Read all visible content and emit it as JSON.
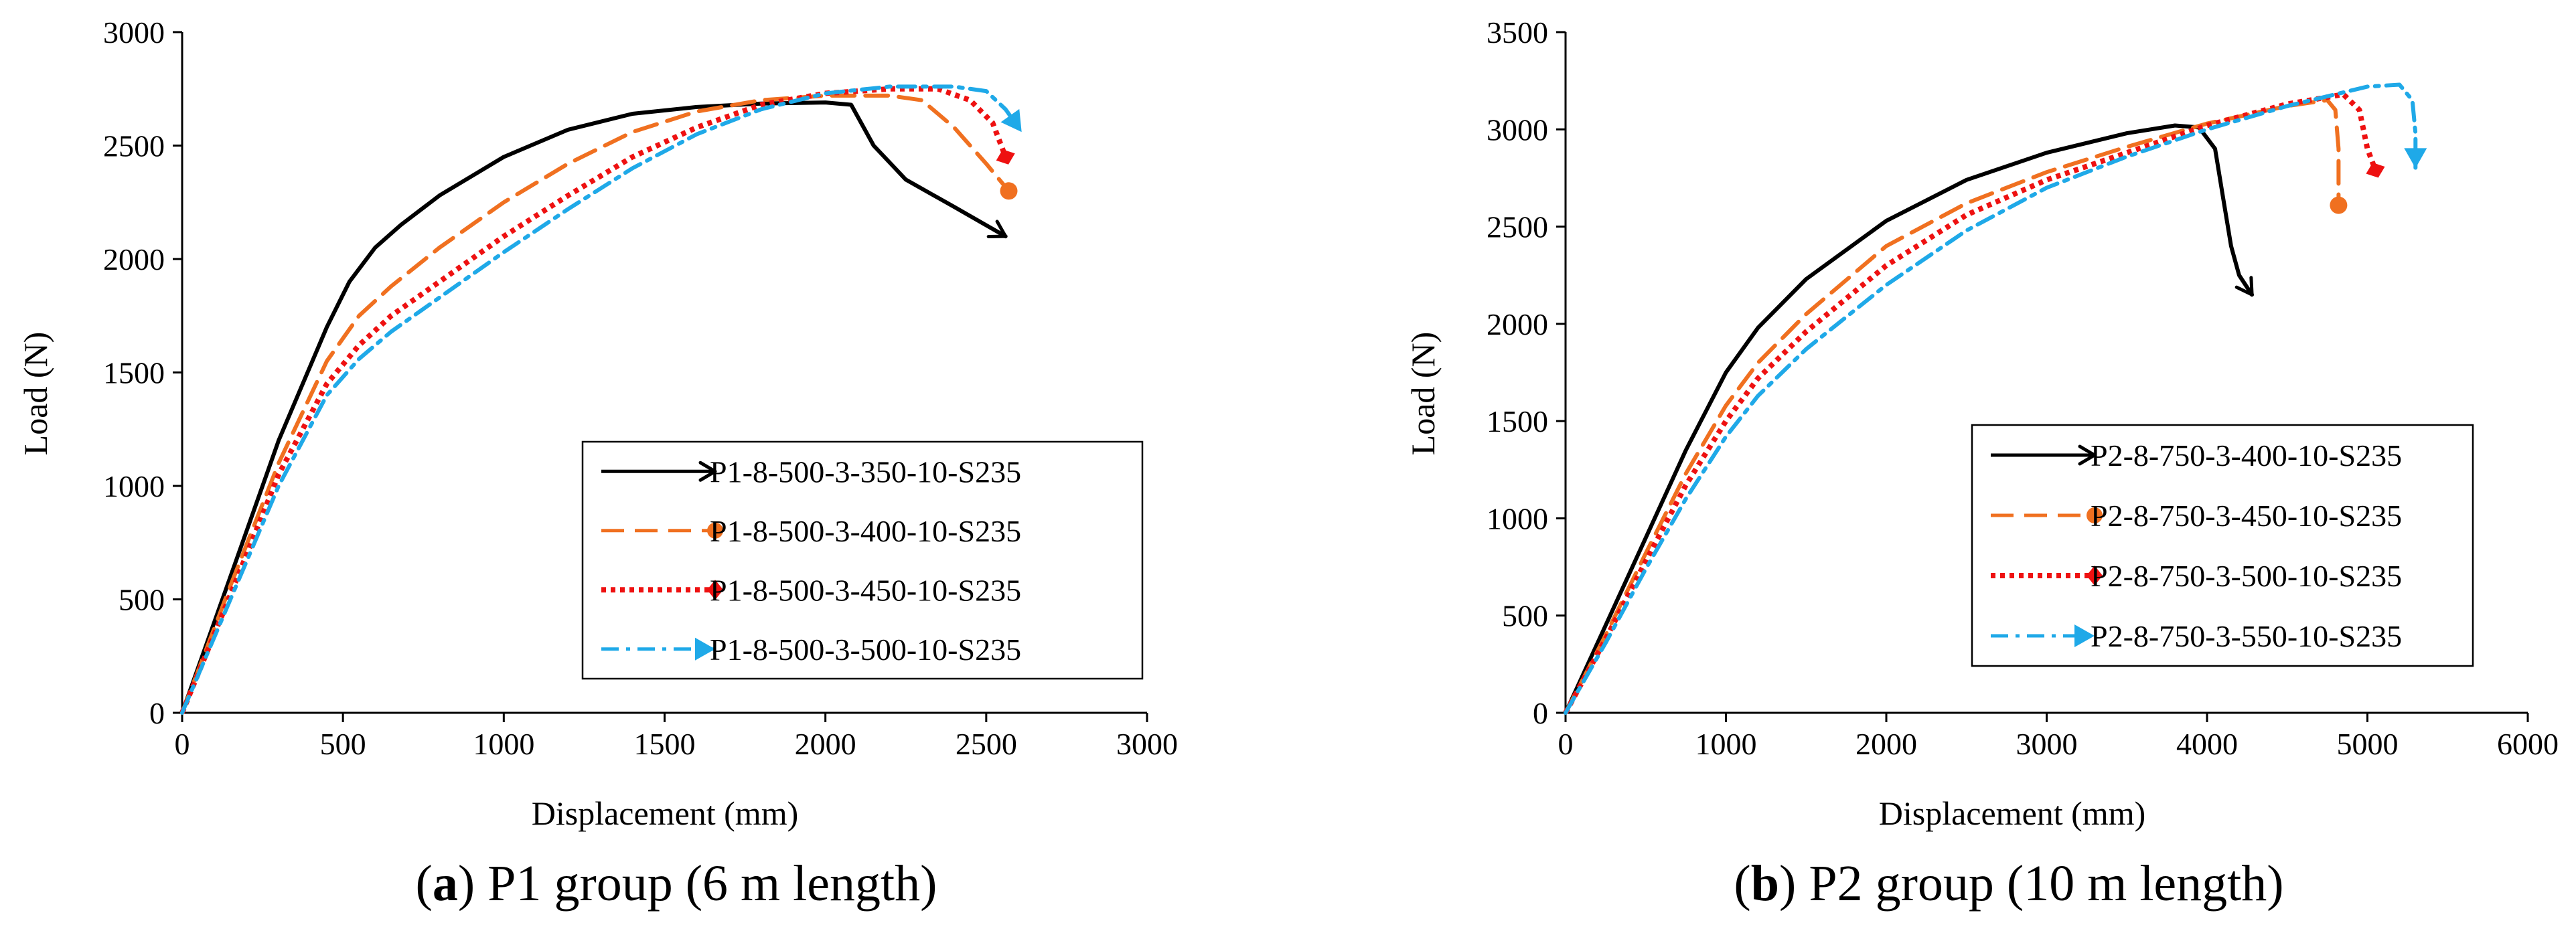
{
  "chart_data": [
    {
      "type": "line",
      "id": "p1",
      "caption_letter": "a",
      "caption_text": " P1 group (6 m length)",
      "xlabel": "Displacement (mm)",
      "ylabel": "Load (N)",
      "xlim": [
        0,
        3000
      ],
      "ylim": [
        0,
        3000
      ],
      "xticks": [
        0,
        500,
        1000,
        1500,
        2000,
        2500,
        3000
      ],
      "yticks": [
        0,
        500,
        1000,
        1500,
        2000,
        2500,
        3000
      ],
      "series": [
        {
          "name": "P1-8-500-3-350-10-S235",
          "color": "#000000",
          "dash": "solid",
          "marker": "arrow",
          "x": [
            0,
            150,
            300,
            450,
            520,
            600,
            680,
            800,
            1000,
            1200,
            1400,
            1600,
            1800,
            2000,
            2080,
            2150,
            2250,
            2400,
            2560
          ],
          "y": [
            0,
            600,
            1200,
            1700,
            1900,
            2050,
            2150,
            2280,
            2450,
            2570,
            2640,
            2670,
            2685,
            2690,
            2680,
            2500,
            2350,
            2230,
            2100
          ]
        },
        {
          "name": "P1-8-500-3-400-10-S235",
          "color": "#F07020",
          "dash": "long-dash",
          "marker": "circle",
          "x": [
            0,
            150,
            300,
            450,
            550,
            650,
            800,
            1000,
            1200,
            1400,
            1600,
            1800,
            2000,
            2200,
            2300,
            2400,
            2500,
            2570
          ],
          "y": [
            0,
            560,
            1100,
            1550,
            1750,
            1880,
            2050,
            2250,
            2420,
            2560,
            2650,
            2700,
            2720,
            2720,
            2700,
            2580,
            2420,
            2300
          ]
        },
        {
          "name": "P1-8-500-3-450-10-S235",
          "color": "#EE1111",
          "dash": "dotted",
          "marker": "diamond",
          "x": [
            0,
            150,
            300,
            450,
            550,
            650,
            800,
            1000,
            1200,
            1400,
            1600,
            1800,
            2000,
            2200,
            2350,
            2450,
            2520,
            2560
          ],
          "y": [
            0,
            520,
            1050,
            1450,
            1620,
            1750,
            1900,
            2100,
            2280,
            2450,
            2580,
            2680,
            2730,
            2750,
            2750,
            2700,
            2600,
            2450
          ]
        },
        {
          "name": "P1-8-500-3-500-10-S235",
          "color": "#1FA9E8",
          "dash": "dash-dot",
          "marker": "arrow",
          "x": [
            0,
            150,
            300,
            450,
            550,
            650,
            800,
            1000,
            1200,
            1400,
            1600,
            1800,
            2000,
            2200,
            2400,
            2500,
            2560,
            2610
          ],
          "y": [
            0,
            500,
            1000,
            1400,
            1560,
            1680,
            1830,
            2030,
            2220,
            2400,
            2550,
            2660,
            2730,
            2760,
            2760,
            2740,
            2660,
            2560
          ]
        }
      ]
    },
    {
      "type": "line",
      "id": "p2",
      "caption_letter": "b",
      "caption_text": " P2 group (10 m length)",
      "xlabel": "Displacement (mm)",
      "ylabel": "Load (N)",
      "xlim": [
        0,
        6000
      ],
      "ylim": [
        0,
        3500
      ],
      "xticks": [
        0,
        1000,
        2000,
        3000,
        4000,
        5000,
        6000
      ],
      "yticks": [
        0,
        500,
        1000,
        1500,
        2000,
        2500,
        3000,
        3500
      ],
      "series": [
        {
          "name": "P2-8-750-3-400-10-S235",
          "color": "#000000",
          "dash": "solid",
          "marker": "arrow",
          "x": [
            0,
            250,
            500,
            750,
            1000,
            1200,
            1500,
            2000,
            2500,
            3000,
            3500,
            3800,
            3950,
            4050,
            4100,
            4150,
            4200,
            4280
          ],
          "y": [
            0,
            450,
            900,
            1350,
            1750,
            1980,
            2230,
            2530,
            2740,
            2880,
            2980,
            3020,
            3010,
            2900,
            2650,
            2400,
            2250,
            2150
          ]
        },
        {
          "name": "P2-8-750-3-450-10-S235",
          "color": "#F07020",
          "dash": "long-dash",
          "marker": "circle",
          "x": [
            0,
            250,
            500,
            750,
            1000,
            1200,
            1500,
            2000,
            2500,
            3000,
            3500,
            4000,
            4500,
            4750,
            4800,
            4820,
            4820
          ],
          "y": [
            0,
            400,
            820,
            1230,
            1580,
            1800,
            2050,
            2400,
            2620,
            2780,
            2910,
            3030,
            3120,
            3150,
            3100,
            2900,
            2610
          ]
        },
        {
          "name": "P2-8-750-3-500-10-S235",
          "color": "#EE1111",
          "dash": "dotted",
          "marker": "diamond",
          "x": [
            0,
            250,
            500,
            750,
            1000,
            1200,
            1500,
            2000,
            2500,
            3000,
            3500,
            4000,
            4500,
            4850,
            4950,
            5000,
            5050
          ],
          "y": [
            0,
            380,
            780,
            1170,
            1500,
            1720,
            1960,
            2300,
            2560,
            2740,
            2880,
            3020,
            3130,
            3180,
            3100,
            2900,
            2790
          ]
        },
        {
          "name": "P2-8-750-3-550-10-S235",
          "color": "#1FA9E8",
          "dash": "dash-dot",
          "marker": "arrow",
          "x": [
            0,
            250,
            500,
            750,
            1000,
            1200,
            1500,
            2000,
            2500,
            3000,
            3500,
            4000,
            4500,
            5000,
            5200,
            5280,
            5300,
            5300
          ],
          "y": [
            0,
            360,
            740,
            1100,
            1420,
            1630,
            1870,
            2200,
            2480,
            2700,
            2860,
            3000,
            3120,
            3220,
            3230,
            3150,
            2980,
            2800
          ]
        }
      ]
    }
  ]
}
